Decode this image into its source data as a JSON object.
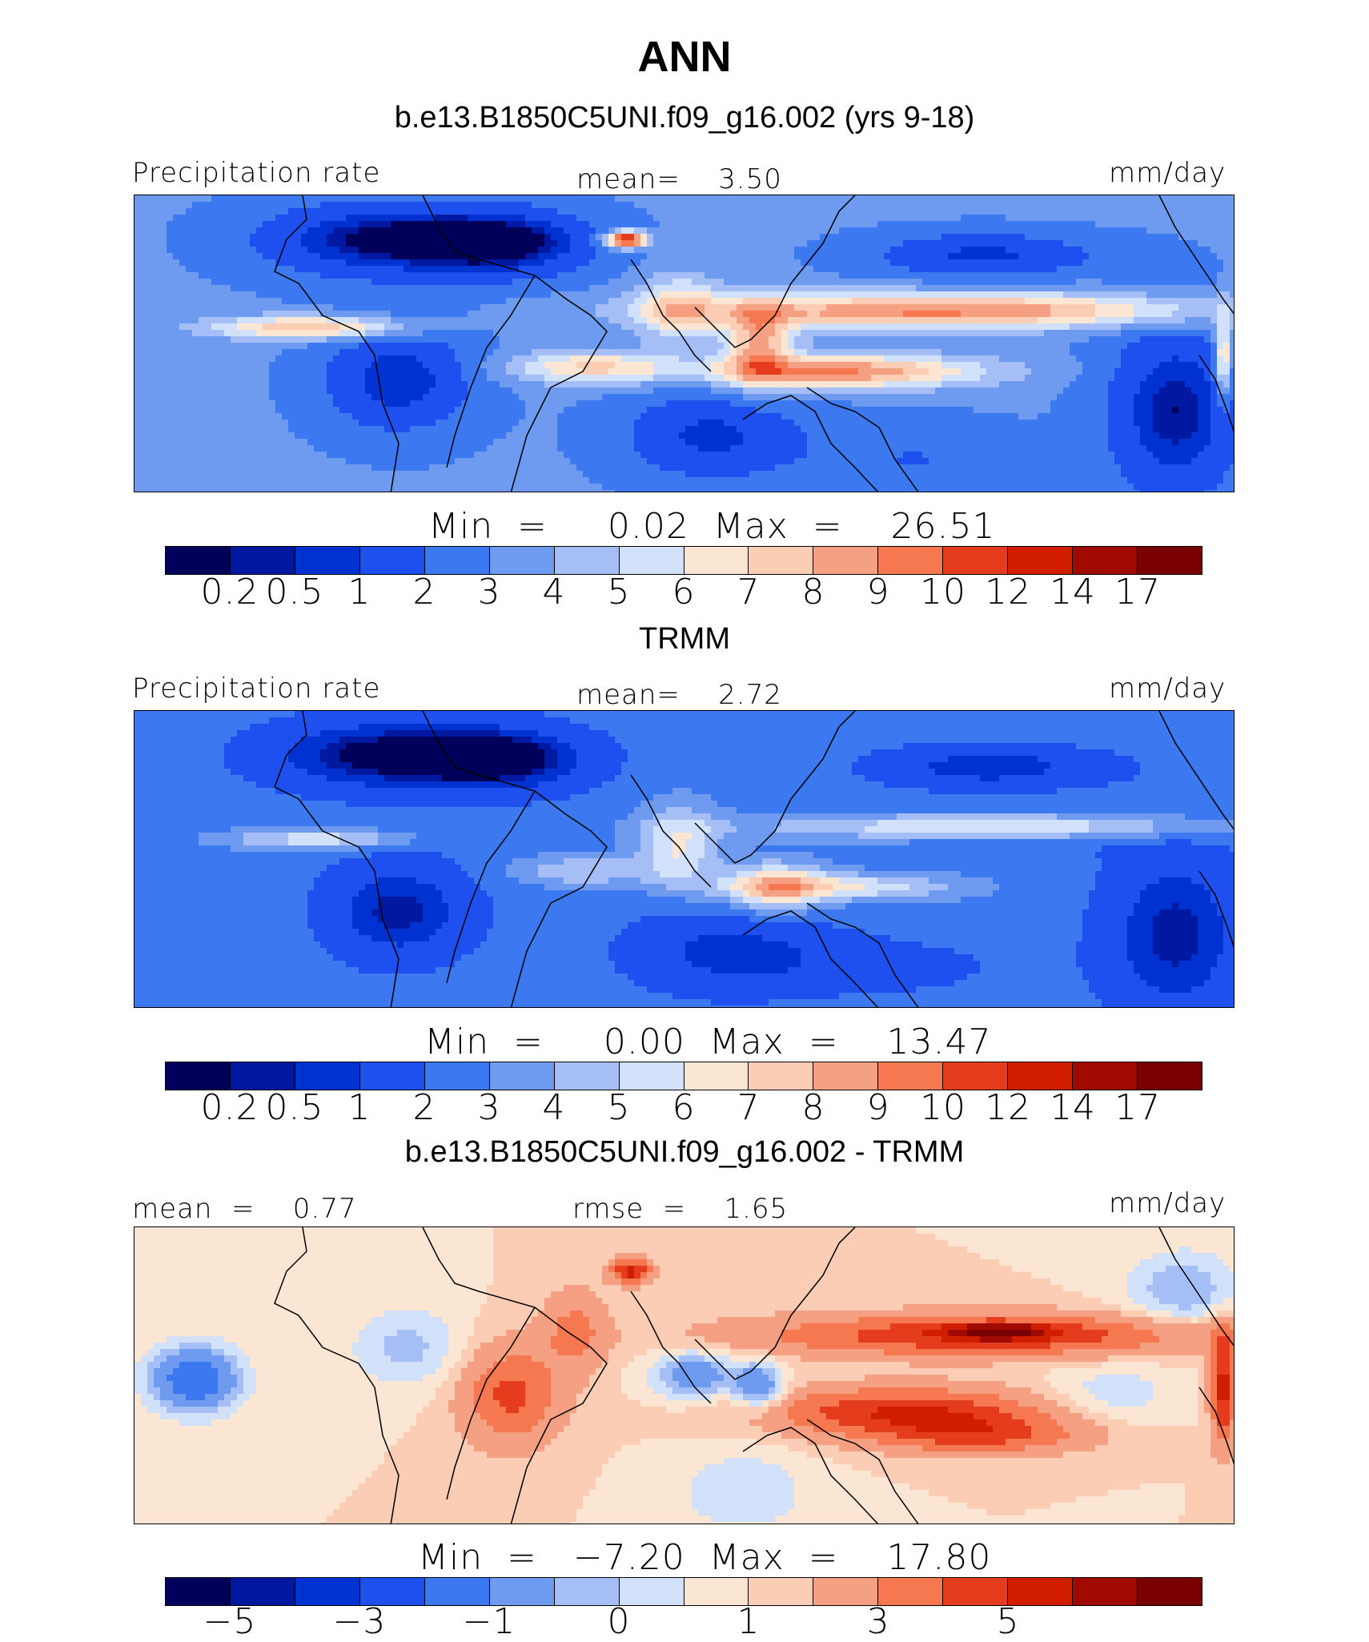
{
  "figure": {
    "season": "ANN"
  },
  "colors": {
    "precip": [
      "#00005a",
      "#0019a0",
      "#0032d2",
      "#1e50f0",
      "#3c78f0",
      "#6e9bf0",
      "#a5bef5",
      "#d2e1fa",
      "#fae6d2",
      "#facdb4",
      "#f5a082",
      "#f57850",
      "#e63c1e",
      "#d21e00",
      "#a00a00",
      "#780000"
    ],
    "diff": [
      "#00005a",
      "#0019a0",
      "#0032d2",
      "#1e50f0",
      "#3c78f0",
      "#6e9bf0",
      "#a5bef5",
      "#d2e1fa",
      "#fae6d2",
      "#facdb4",
      "#f5a082",
      "#f57850",
      "#e63c1e",
      "#d21e00",
      "#a00a00",
      "#780000"
    ]
  },
  "panels": [
    {
      "title": "b.e13.B1850C5UNI.f09_g16.002 (yrs 9-18)",
      "left_label": "Precipitation rate",
      "center_label": "mean=    3.50",
      "right_label": "mm/day",
      "minmax": "Min  =     0.02  Max  =    26.51",
      "ticks": [
        "0.2",
        "0.5",
        "1",
        "2",
        "3",
        "4",
        "5",
        "6",
        "7",
        "8",
        "9",
        "10",
        "12",
        "14",
        "17"
      ],
      "field": "model"
    },
    {
      "title": "TRMM",
      "left_label": "Precipitation rate",
      "center_label": "mean=    2.72",
      "right_label": "mm/day",
      "minmax": "Min  =     0.00  Max  =    13.47",
      "ticks": [
        "0.2",
        "0.5",
        "1",
        "2",
        "3",
        "4",
        "5",
        "6",
        "7",
        "8",
        "9",
        "10",
        "12",
        "14",
        "17"
      ],
      "field": "obs"
    },
    {
      "title": "b.e13.B1850C5UNI.f09_g16.002 - TRMM",
      "left_label": "mean  =    0.77",
      "center_label": "rmse  =    1.65",
      "right_label": "mm/day",
      "minmax": "Min  =   −7.20  Max  =    17.80",
      "ticks": [
        "−5",
        "−3",
        "−1",
        "0",
        "1",
        "3",
        "5"
      ],
      "field": "diff"
    }
  ]
}
